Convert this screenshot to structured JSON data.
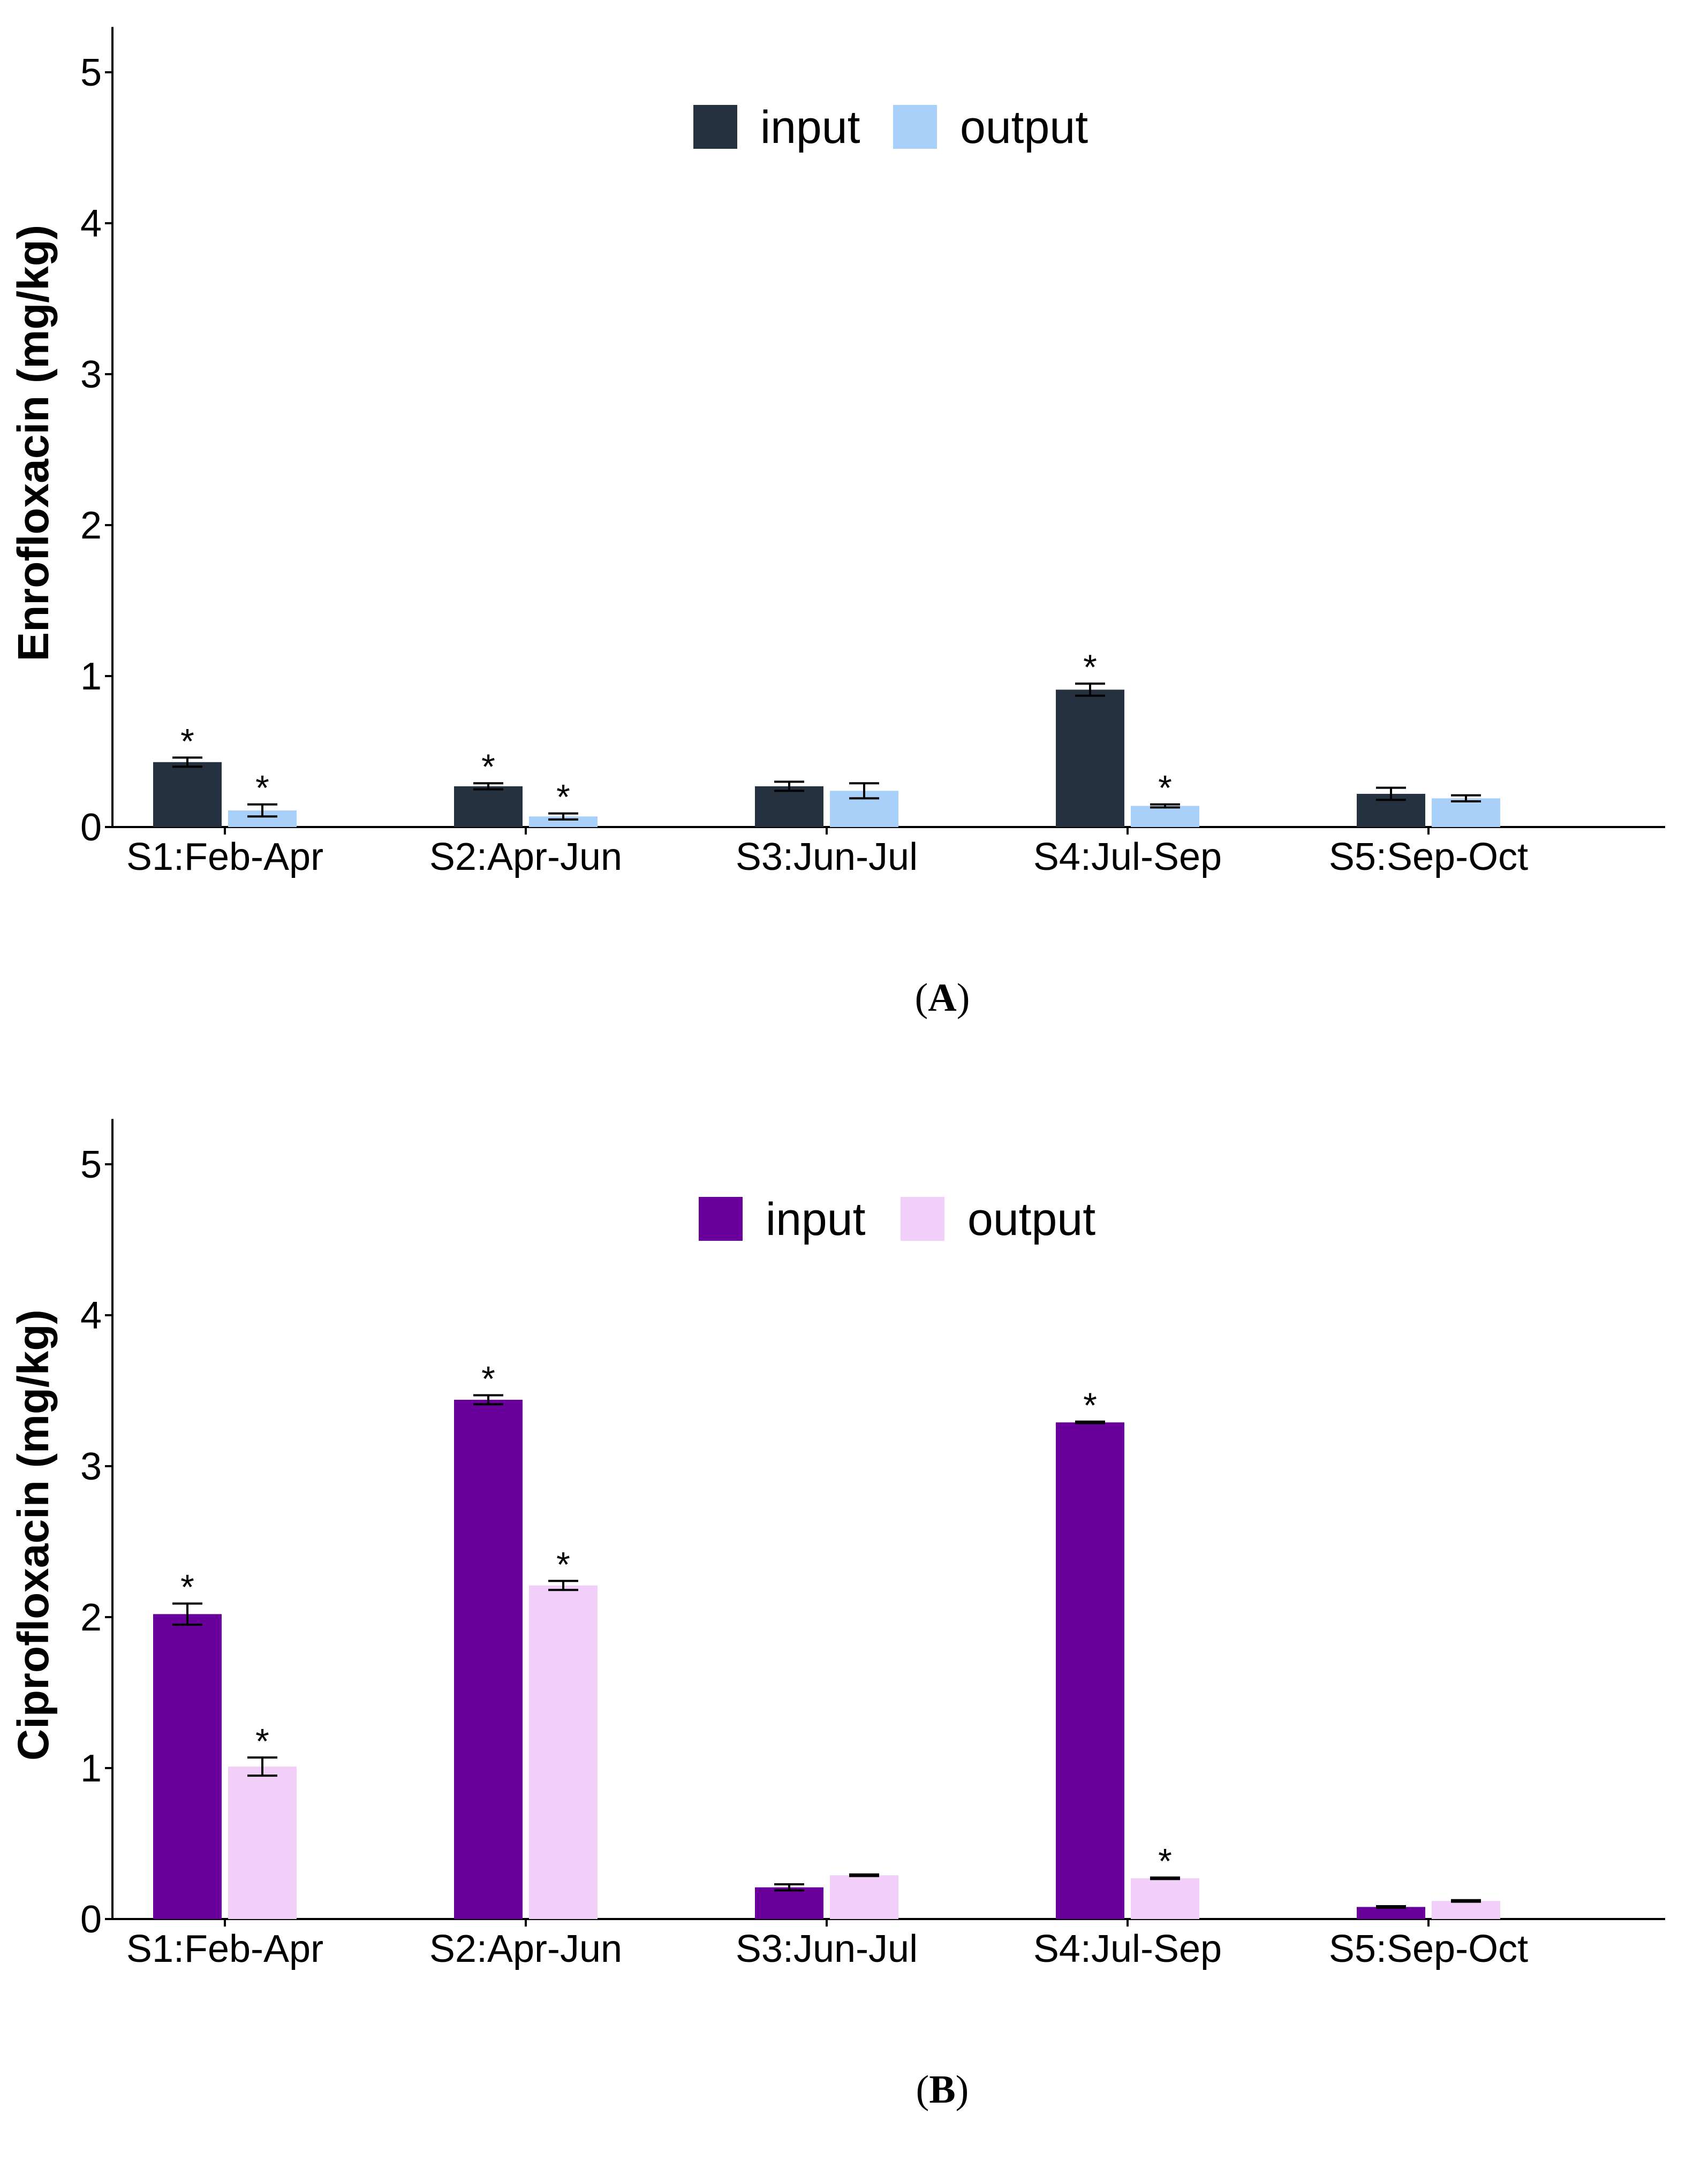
{
  "panels": [
    {
      "id": "a",
      "label": "A",
      "ylabel": "Enrofloxacin (mg/kg)",
      "legend": [
        {
          "name": "input",
          "color": "#263140"
        },
        {
          "name": "output",
          "color": "#a8d0f8"
        }
      ],
      "yticks": [
        "0",
        "1",
        "2",
        "3",
        "4",
        "5"
      ]
    },
    {
      "id": "b",
      "label": "B",
      "ylabel": "Ciprofloxacin (mg/kg)",
      "legend": [
        {
          "name": "input",
          "color": "#6a009b"
        },
        {
          "name": "output",
          "color": "#f1cff8"
        }
      ],
      "yticks": [
        "0",
        "1",
        "2",
        "3",
        "4",
        "5"
      ]
    }
  ],
  "chart_data": [
    {
      "type": "bar",
      "title": "",
      "xlabel": "",
      "ylabel": "Enrofloxacin (mg/kg)",
      "ylim": [
        0,
        5.3
      ],
      "categories": [
        "S1:Feb-Apr",
        "S2:Apr-Jun",
        "S3:Jun-Jul",
        "S4:Jul-Sep",
        "S5:Sep-Oct"
      ],
      "series": [
        {
          "name": "input",
          "color": "#263140",
          "values": [
            0.43,
            0.27,
            0.27,
            0.91,
            0.22
          ],
          "errors": [
            0.03,
            0.02,
            0.03,
            0.04,
            0.04
          ],
          "significant": [
            true,
            true,
            false,
            true,
            false
          ]
        },
        {
          "name": "output",
          "color": "#a8d0f8",
          "values": [
            0.11,
            0.07,
            0.24,
            0.14,
            0.19
          ],
          "errors": [
            0.04,
            0.02,
            0.05,
            0.01,
            0.02
          ],
          "significant": [
            true,
            true,
            false,
            true,
            false
          ]
        }
      ],
      "legend_position": "top-center",
      "significance_marker": "*",
      "grid": false
    },
    {
      "type": "bar",
      "title": "",
      "xlabel": "",
      "ylabel": "Ciprofloxacin (mg/kg)",
      "ylim": [
        0,
        5.3
      ],
      "categories": [
        "S1:Feb-Apr",
        "S2:Apr-Jun",
        "S3:Jun-Jul",
        "S4:Jul-Sep",
        "S5:Sep-Oct"
      ],
      "series": [
        {
          "name": "input",
          "color": "#6a009b",
          "values": [
            2.02,
            3.44,
            0.21,
            3.29,
            0.08
          ],
          "errors": [
            0.07,
            0.03,
            0.02,
            0.005,
            0.005
          ],
          "significant": [
            true,
            true,
            false,
            true,
            false
          ]
        },
        {
          "name": "output",
          "color": "#f1cff8",
          "values": [
            1.01,
            2.21,
            0.29,
            0.27,
            0.12
          ],
          "errors": [
            0.06,
            0.03,
            0.005,
            0.005,
            0.005
          ],
          "significant": [
            true,
            true,
            false,
            true,
            false
          ]
        }
      ],
      "legend_position": "top-center",
      "significance_marker": "*",
      "grid": false
    }
  ]
}
